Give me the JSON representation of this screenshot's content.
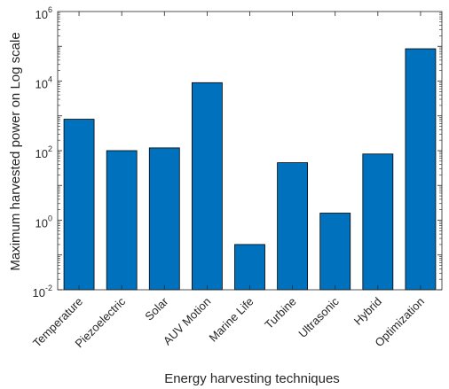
{
  "chart_data": {
    "type": "bar",
    "xlabel": "Energy harvesting techniques",
    "ylabel": "Maximum harvested power on Log scale",
    "yscale": "log",
    "ylim": [
      0.01,
      1000000
    ],
    "yticks": [
      {
        "value": 0.01,
        "base": "10",
        "exp": "-2"
      },
      {
        "value": 1,
        "base": "10",
        "exp": "0"
      },
      {
        "value": 100,
        "base": "10",
        "exp": "2"
      },
      {
        "value": 10000,
        "base": "10",
        "exp": "4"
      },
      {
        "value": 1000000,
        "base": "10",
        "exp": "6"
      }
    ],
    "categories": [
      "Temperature",
      "Piezoelectric",
      "Solar",
      "AUV Motion",
      "Marine Life",
      "Turbine",
      "Ultrasonic",
      "Hybrid",
      "Optimization"
    ],
    "values": [
      800,
      100,
      120,
      9000,
      0.2,
      45,
      1.6,
      80,
      85000
    ],
    "bar_color": "#0072bd",
    "grid": false,
    "legend": "none"
  }
}
